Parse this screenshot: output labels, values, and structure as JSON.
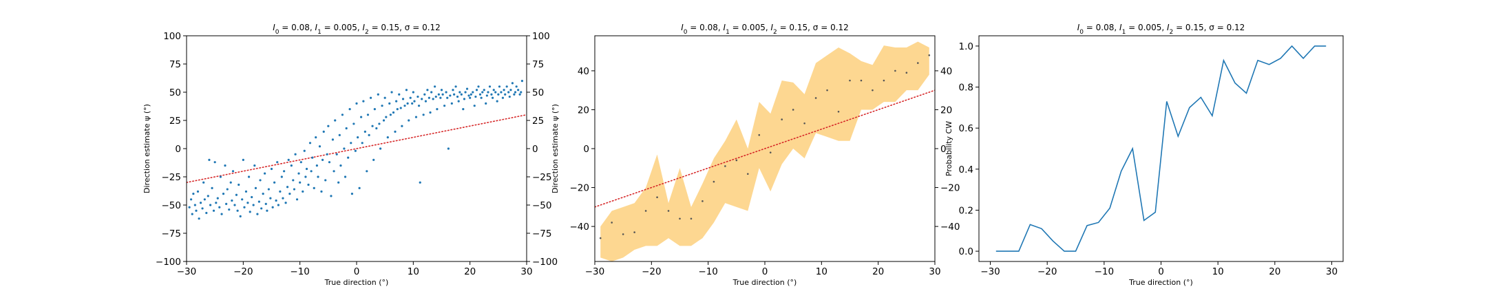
{
  "chart_data": [
    {
      "type": "scatter",
      "title_parts": [
        "I",
        "0",
        " = 0.08, ",
        "I",
        "1",
        " = 0.005, ",
        "I",
        "2",
        " = 0.15, σ = 0.12"
      ],
      "xlabel": "True direction (°)",
      "ylabel": "Direction estimate ψ (°)",
      "xlim": [
        -30,
        30
      ],
      "ylim": [
        -100,
        100
      ],
      "xticks": [
        -30,
        -20,
        -10,
        0,
        10,
        20,
        30
      ],
      "yticks": [
        -100,
        -75,
        -50,
        -25,
        0,
        25,
        50,
        75,
        100
      ],
      "right_yticks": [
        -100,
        -75,
        -50,
        -25,
        0,
        25,
        50,
        75,
        100
      ],
      "reference_line": {
        "x": [
          -30,
          30
        ],
        "y": [
          -30,
          30
        ],
        "style": "dotted",
        "color": "#d62728"
      },
      "point_color": "#1f77b4",
      "point_x": [
        -29.5,
        -29.2,
        -29.0,
        -28.8,
        -28.5,
        -28.3,
        -28.0,
        -27.8,
        -27.5,
        -27.2,
        -27.0,
        -26.8,
        -26.5,
        -26.2,
        -26.0,
        -25.8,
        -25.5,
        -25.2,
        -25.0,
        -24.8,
        -24.5,
        -24.2,
        -24.0,
        -23.8,
        -23.5,
        -23.2,
        -23.0,
        -22.8,
        -22.5,
        -22.2,
        -22.0,
        -21.8,
        -21.5,
        -21.2,
        -21.0,
        -20.8,
        -20.5,
        -20.2,
        -20.0,
        -19.8,
        -19.5,
        -19.2,
        -19.0,
        -18.8,
        -18.5,
        -18.2,
        -18.0,
        -17.8,
        -17.5,
        -17.2,
        -17.0,
        -16.8,
        -16.5,
        -16.2,
        -16.0,
        -15.8,
        -15.5,
        -15.2,
        -15.0,
        -14.8,
        -14.5,
        -14.2,
        -14.0,
        -13.8,
        -13.5,
        -13.2,
        -13.0,
        -12.8,
        -12.5,
        -12.2,
        -12.0,
        -11.8,
        -11.5,
        -11.2,
        -11.0,
        -10.8,
        -10.5,
        -10.2,
        -10.0,
        -9.8,
        -9.5,
        -9.2,
        -9.0,
        -8.8,
        -8.5,
        -8.2,
        -8.0,
        -7.8,
        -7.5,
        -7.2,
        -7.0,
        -6.8,
        -6.5,
        -6.2,
        -6.0,
        -5.8,
        -5.5,
        -5.2,
        -5.0,
        -4.8,
        -4.5,
        -4.2,
        -4.0,
        -3.8,
        -3.5,
        -3.2,
        -3.0,
        -2.8,
        -2.5,
        -2.2,
        -2.0,
        -1.8,
        -1.5,
        -1.2,
        -1.0,
        -0.8,
        -0.5,
        -0.2,
        0.0,
        0.2,
        0.5,
        0.8,
        1.0,
        1.2,
        1.5,
        1.8,
        2.0,
        2.2,
        2.5,
        2.8,
        3.0,
        3.2,
        3.5,
        3.8,
        4.0,
        4.2,
        4.5,
        4.8,
        5.0,
        5.2,
        5.5,
        5.8,
        6.0,
        6.2,
        6.5,
        6.8,
        7.0,
        7.2,
        7.5,
        7.8,
        8.0,
        8.2,
        8.5,
        8.8,
        9.0,
        9.2,
        9.5,
        9.8,
        10.0,
        10.2,
        10.5,
        10.8,
        11.0,
        11.2,
        11.5,
        11.8,
        12.0,
        12.2,
        12.5,
        12.8,
        13.0,
        13.2,
        13.5,
        13.8,
        14.0,
        14.2,
        14.5,
        14.8,
        15.0,
        15.2,
        15.5,
        15.8,
        16.0,
        16.2,
        16.5,
        16.8,
        17.0,
        17.2,
        17.5,
        17.8,
        18.0,
        18.2,
        18.5,
        18.8,
        19.0,
        19.2,
        19.5,
        19.8,
        20.0,
        20.2,
        20.5,
        20.8,
        21.0,
        21.2,
        21.5,
        21.8,
        22.0,
        22.2,
        22.5,
        22.8,
        23.0,
        23.2,
        23.5,
        23.8,
        24.0,
        24.2,
        24.5,
        24.8,
        25.0,
        25.2,
        25.5,
        25.8,
        26.0,
        26.2,
        26.5,
        26.8,
        27.0,
        27.2,
        27.5,
        27.8,
        28.0,
        28.2,
        28.5,
        28.8,
        29.0,
        29.2,
        29.5,
        29.8
      ],
      "point_y": [
        -52,
        -45,
        -58,
        -40,
        -50,
        -55,
        -38,
        -62,
        -48,
        -53,
        -30,
        -45,
        -57,
        -42,
        -10,
        -50,
        -35,
        -55,
        -12,
        -48,
        -44,
        -52,
        -25,
        -58,
        -40,
        -15,
        -49,
        -36,
        -54,
        -30,
        -46,
        -20,
        -50,
        -41,
        -55,
        -32,
        -60,
        -45,
        -10,
        -52,
        -38,
        -48,
        -25,
        -56,
        -43,
        -50,
        -15,
        -35,
        -58,
        -47,
        -28,
        -53,
        -40,
        -22,
        -49,
        -55,
        -36,
        -44,
        -18,
        -52,
        -30,
        -46,
        -12,
        -50,
        -38,
        -25,
        -44,
        -20,
        -48,
        -34,
        -10,
        -40,
        -15,
        -28,
        -36,
        -5,
        -45,
        -22,
        -30,
        -12,
        -38,
        -2,
        -25,
        -18,
        -32,
        5,
        -20,
        -8,
        -35,
        10,
        -15,
        -25,
        2,
        -38,
        -10,
        15,
        -28,
        -5,
        20,
        -12,
        -42,
        8,
        -20,
        25,
        -5,
        -30,
        12,
        -15,
        30,
        0,
        -25,
        18,
        -8,
        35,
        5,
        -40,
        22,
        -2,
        40,
        10,
        -35,
        28,
        5,
        42,
        15,
        -20,
        30,
        12,
        45,
        20,
        -10,
        35,
        18,
        48,
        22,
        0,
        38,
        25,
        45,
        28,
        10,
        40,
        30,
        50,
        32,
        15,
        42,
        35,
        48,
        36,
        20,
        44,
        38,
        52,
        40,
        25,
        45,
        40,
        50,
        42,
        28,
        46,
        38,
        -30,
        44,
        30,
        48,
        42,
        52,
        45,
        32,
        50,
        44,
        55,
        46,
        35,
        48,
        45,
        52,
        48,
        38,
        50,
        45,
        0,
        47,
        40,
        52,
        48,
        55,
        46,
        42,
        50,
        48,
        35,
        44,
        50,
        53,
        47,
        45,
        48,
        50,
        38,
        46,
        52,
        55,
        48,
        45,
        50,
        52,
        40,
        47,
        50,
        55,
        48,
        45,
        52,
        50,
        42,
        48,
        55,
        50,
        45,
        52,
        48,
        55,
        50,
        46,
        52,
        58,
        48,
        50,
        55,
        52,
        48,
        50,
        60
      ]
    },
    {
      "type": "line",
      "title_parts": [
        "I",
        "0",
        " = 0.08, ",
        "I",
        "1",
        " = 0.005, ",
        "I",
        "2",
        " = 0.15, σ = 0.12"
      ],
      "xlabel": "True direction (°)",
      "ylabel": "Direction estimate ψ (°)",
      "xlim": [
        -30,
        30
      ],
      "ylim": [
        -58,
        58
      ],
      "xticks": [
        -30,
        -20,
        -10,
        0,
        10,
        20,
        30
      ],
      "yticks": [
        -40,
        -20,
        0,
        20,
        40
      ],
      "right_yticks": [
        -40,
        -20,
        0,
        20,
        40
      ],
      "reference_line": {
        "x": [
          -30,
          30
        ],
        "y": [
          -30,
          30
        ],
        "style": "dotted",
        "color": "#d62728"
      },
      "band_color": "#fdd58b",
      "mean_color": "#555555",
      "x": [
        -29,
        -27,
        -25,
        -23,
        -21,
        -19,
        -17,
        -15,
        -13,
        -11,
        -9,
        -7,
        -5,
        -3,
        -1,
        1,
        3,
        5,
        7,
        9,
        11,
        13,
        15,
        17,
        19,
        21,
        23,
        25,
        27,
        29
      ],
      "mean": [
        -46,
        -38,
        -44,
        -43,
        -32,
        -25,
        -32,
        -36,
        -36,
        -27,
        -17,
        -9,
        -6,
        -13,
        7,
        -2,
        15,
        20,
        13,
        26,
        30,
        19,
        35,
        35,
        30,
        35,
        40,
        39,
        44,
        48
      ],
      "upper": [
        -40,
        -32,
        -30,
        -28,
        -20,
        -3,
        -28,
        -10,
        -30,
        -18,
        -5,
        4,
        15,
        0,
        24,
        18,
        35,
        34,
        28,
        44,
        48,
        52,
        49,
        45,
        43,
        53,
        52,
        52,
        55,
        52
      ],
      "lower": [
        -56,
        -58,
        -56,
        -52,
        -50,
        -50,
        -46,
        -50,
        -50,
        -46,
        -38,
        -28,
        -30,
        -32,
        -10,
        -22,
        -8,
        0,
        -5,
        8,
        6,
        4,
        4,
        20,
        20,
        24,
        24,
        30,
        30,
        38
      ]
    },
    {
      "type": "line",
      "title_parts": [
        "I",
        "0",
        " = 0.08, ",
        "I",
        "1",
        " = 0.005, ",
        "I",
        "2",
        " = 0.15, σ = 0.12"
      ],
      "xlabel": "True direction (°)",
      "ylabel": "Probability CW",
      "xlim": [
        -32,
        32
      ],
      "ylim": [
        -0.05,
        1.05
      ],
      "xticks": [
        -30,
        -20,
        -10,
        0,
        10,
        20,
        30
      ],
      "yticks": [
        0.0,
        0.2,
        0.4,
        0.6,
        0.8,
        1.0
      ],
      "line_color": "#1f77b4",
      "x": [
        -29,
        -27,
        -25,
        -23,
        -21,
        -19,
        -17,
        -15,
        -13,
        -11,
        -9,
        -7,
        -5,
        -3,
        -1,
        1,
        3,
        5,
        7,
        9,
        11,
        13,
        15,
        17,
        19,
        21,
        23,
        25,
        27,
        29
      ],
      "y": [
        0.0,
        0.0,
        0.0,
        0.13,
        0.11,
        0.05,
        0.0,
        0.0,
        0.125,
        0.14,
        0.21,
        0.39,
        0.5,
        0.15,
        0.19,
        0.73,
        0.56,
        0.7,
        0.75,
        0.66,
        0.93,
        0.82,
        0.77,
        0.93,
        0.91,
        0.94,
        1.0,
        0.94,
        1.0,
        1.0
      ]
    }
  ]
}
